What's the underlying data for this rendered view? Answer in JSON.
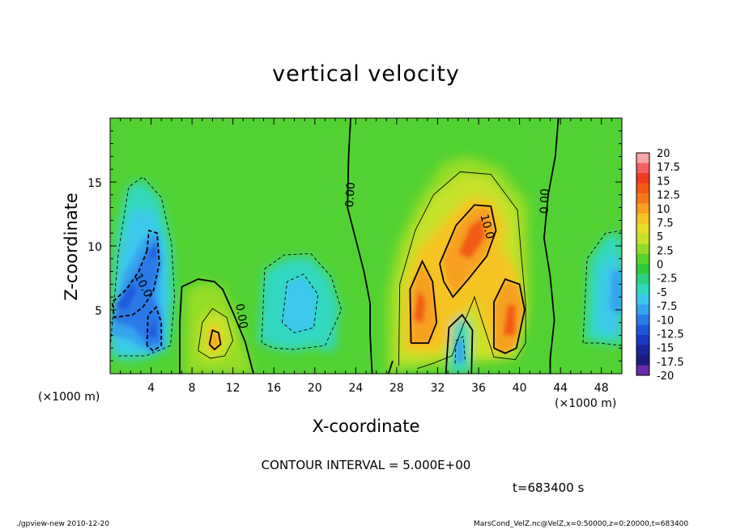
{
  "chart_data": {
    "type": "heatmap",
    "title": "vertical velocity",
    "xlabel": "X-coordinate",
    "ylabel": "Z-coordinate",
    "x_unit_label": "(×1000 m)",
    "xlim": [
      0,
      50
    ],
    "ylim": [
      0,
      20
    ],
    "x_ticks": [
      "4",
      "8",
      "12",
      "16",
      "20",
      "24",
      "28",
      "32",
      "36",
      "40",
      "44",
      "48"
    ],
    "x_tick_values": [
      4,
      8,
      12,
      16,
      20,
      24,
      28,
      32,
      36,
      40,
      44,
      48
    ],
    "y_ticks": [
      "5",
      "10",
      "15"
    ],
    "y_tick_values": [
      5,
      10,
      15
    ],
    "colorbar": {
      "labels": [
        "20",
        "17.5",
        "15",
        "12.5",
        "10",
        "7.5",
        "5",
        "2.5",
        "0",
        "-2.5",
        "-5",
        "-7.5",
        "-10",
        "-12.5",
        "-15",
        "-17.5",
        "-20"
      ],
      "colors": [
        "#f7a5a5",
        "#f46060",
        "#f23a1e",
        "#f25a14",
        "#f57a1a",
        "#f8a020",
        "#f5c424",
        "#e8dc26",
        "#c8e22a",
        "#94dc28",
        "#56d428",
        "#2ecc3a",
        "#2ad282",
        "#30d8c0",
        "#3cc8ee",
        "#35a4ee",
        "#2a7ae8",
        "#2058dc",
        "#1a3ac4",
        "#18289a",
        "#1c1c80",
        "#6a2aa8"
      ]
    },
    "features": [
      {
        "x": 2.5,
        "z": 6.5,
        "value": -12.5
      },
      {
        "x": 4.2,
        "z": 10.0,
        "value": -11
      },
      {
        "x": 4.5,
        "z": 3.5,
        "value": -11
      },
      {
        "x": 10.2,
        "z": 2.5,
        "value": 9
      },
      {
        "x": 18.5,
        "z": 6.0,
        "value": -4
      },
      {
        "x": 30.5,
        "z": 5.5,
        "value": 13
      },
      {
        "x": 35.5,
        "z": 10.5,
        "value": 13
      },
      {
        "x": 39.5,
        "z": 4.5,
        "value": 13
      },
      {
        "x": 34.0,
        "z": 2.0,
        "value": -6
      },
      {
        "x": 49.0,
        "z": 7.5,
        "value": -8
      }
    ],
    "contour_labels": [
      {
        "text": "10.0",
        "x": 3.2,
        "z": 6.9,
        "angle": 62
      },
      {
        "text": "0.00",
        "x": 12.8,
        "z": 4.5,
        "angle": 80
      },
      {
        "text": "0.00",
        "x": 23.5,
        "z": 14.0,
        "angle": -86
      },
      {
        "text": "10.0",
        "x": 36.8,
        "z": 11.5,
        "angle": 75
      },
      {
        "text": "0.00",
        "x": 42.5,
        "z": 13.5,
        "angle": -88
      }
    ]
  },
  "contour_interval": "CONTOUR INTERVAL = 5.000E+00",
  "time_label": "t=683400 s",
  "footer_left": "./gpview-new   2010-12-20",
  "footer_right": "MarsCond_VelZ.nc@VelZ,x=0:50000,z=0:20000,t=683400"
}
